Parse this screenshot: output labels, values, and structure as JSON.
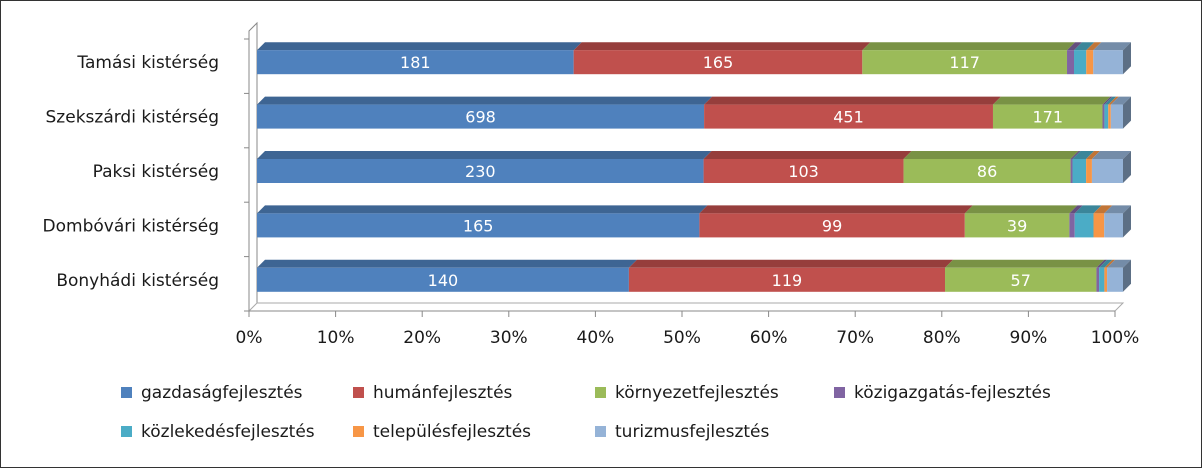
{
  "chart_data": {
    "type": "bar",
    "orientation": "horizontal",
    "stacking": "percent",
    "three_d": true,
    "categories": [
      "Bonyhádi kistérség",
      "Dombóvári kistérség",
      "Paksi kistérség",
      "Szekszárdi kistérség",
      "Tamási kistérség"
    ],
    "x_ticks": [
      "0%",
      "10%",
      "20%",
      "30%",
      "40%",
      "50%",
      "60%",
      "70%",
      "80%",
      "90%",
      "100%"
    ],
    "xlim": [
      0,
      100
    ],
    "grid": false,
    "legend_position": "bottom",
    "series": [
      {
        "name": "gazdaságfejlesztés",
        "color": "#4F81BD",
        "values": [
          140,
          165,
          230,
          698,
          181
        ],
        "labels": [
          "140",
          "165",
          "230",
          "698",
          "181"
        ]
      },
      {
        "name": "humánfejlesztés",
        "color": "#C0504D",
        "values": [
          119,
          99,
          103,
          451,
          165
        ],
        "labels": [
          "119",
          "99",
          "103",
          "451",
          "165"
        ]
      },
      {
        "name": "környezetfejlesztés",
        "color": "#9BBB59",
        "values": [
          57,
          39,
          86,
          171,
          117
        ],
        "labels": [
          "57",
          "39",
          "86",
          "171",
          "117"
        ]
      },
      {
        "name": "közigazgatás-fejlesztés",
        "color": "#8064A2",
        "values": [
          1,
          2,
          1,
          3,
          4
        ],
        "labels": [
          "",
          "",
          "",
          "",
          ""
        ]
      },
      {
        "name": "közlekedésfejlesztés",
        "color": "#4BACC6",
        "values": [
          2,
          7,
          7,
          6,
          7
        ],
        "labels": [
          "",
          "",
          "",
          "",
          ""
        ]
      },
      {
        "name": "településfejlesztés",
        "color": "#F79646",
        "values": [
          1,
          4,
          3,
          4,
          4
        ],
        "labels": [
          "",
          "",
          "",
          "",
          ""
        ]
      },
      {
        "name": "turizmusfejlesztés",
        "color": "#95B3D7",
        "values": [
          6,
          7,
          16,
          19,
          17
        ],
        "labels": [
          "",
          "",
          "",
          "",
          ""
        ]
      }
    ]
  }
}
